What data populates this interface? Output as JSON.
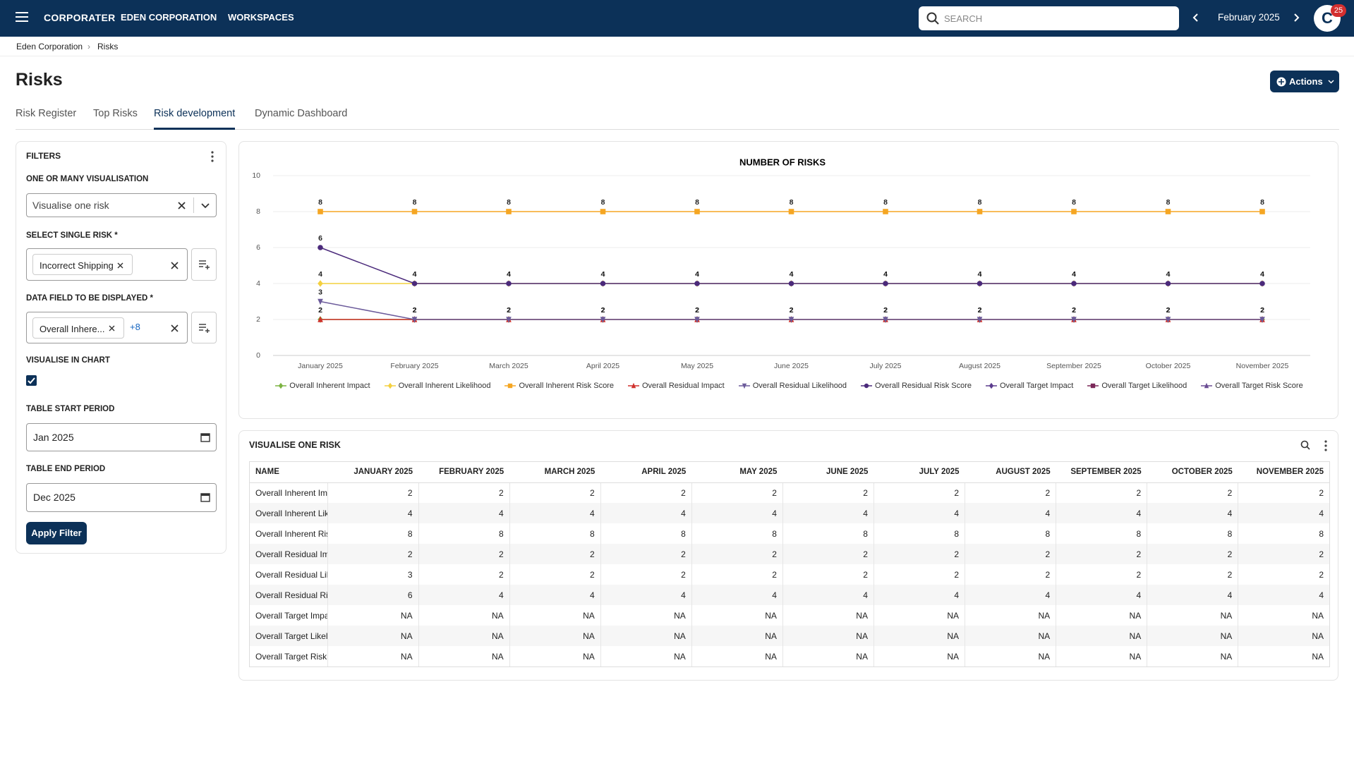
{
  "nav": {
    "brand": "CORPORATER",
    "items": [
      "EDEN CORPORATION",
      "WORKSPACES"
    ],
    "search": "SEARCH",
    "period": "February 2025",
    "avatar": "C",
    "badge": "25"
  },
  "breadcrumb": [
    "Eden Corporation",
    "Risks"
  ],
  "page": {
    "title": "Risks",
    "actions": "Actions"
  },
  "tabs": [
    "Risk Register",
    "Top Risks",
    "Risk development",
    "Dynamic Dashboard"
  ],
  "filters": {
    "title": "FILTERS",
    "visualisation_label": "ONE OR MANY VISUALISATION",
    "visualisation_value": "Visualise one risk",
    "risk_label": "SELECT SINGLE RISK *",
    "risk_chip": "Incorrect Shipping",
    "field_label": "DATA FIELD TO BE DISPLAYED *",
    "field_chip": "Overall Inhere...",
    "field_more": "+8",
    "chart_label": "VISUALISE IN CHART",
    "start_label": "TABLE START PERIOD",
    "start_value": "Jan 2025",
    "end_label": "TABLE END PERIOD",
    "end_value": "Dec 2025",
    "apply": "Apply Filter"
  },
  "chart_data": {
    "type": "line",
    "title": "NUMBER OF RISKS",
    "categories": [
      "January 2025",
      "February 2025",
      "March 2025",
      "April 2025",
      "May 2025",
      "June 2025",
      "July 2025",
      "August 2025",
      "September 2025",
      "October 2025",
      "November 2025"
    ],
    "ylim": [
      0,
      10
    ],
    "yticks": [
      0,
      2,
      4,
      6,
      8,
      10
    ],
    "grid": true,
    "series": [
      {
        "name": "Overall Inherent Impact",
        "color": "#7cb342",
        "marker": "diamond",
        "values": [
          2,
          2,
          2,
          2,
          2,
          2,
          2,
          2,
          2,
          2,
          2
        ]
      },
      {
        "name": "Overall Inherent Likelihood",
        "color": "#f4d03f",
        "marker": "diamond",
        "values": [
          4,
          4,
          4,
          4,
          4,
          4,
          4,
          4,
          4,
          4,
          4
        ]
      },
      {
        "name": "Overall Inherent Risk Score",
        "color": "#f5a623",
        "marker": "square",
        "values": [
          8,
          8,
          8,
          8,
          8,
          8,
          8,
          8,
          8,
          8,
          8
        ]
      },
      {
        "name": "Overall Residual Impact",
        "color": "#d0312d",
        "marker": "triangle",
        "values": [
          2,
          2,
          2,
          2,
          2,
          2,
          2,
          2,
          2,
          2,
          2
        ]
      },
      {
        "name": "Overall Residual Likelihood",
        "color": "#6c5b9b",
        "marker": "triangle-down",
        "values": [
          3,
          2,
          2,
          2,
          2,
          2,
          2,
          2,
          2,
          2,
          2
        ]
      },
      {
        "name": "Overall Residual Risk Score",
        "color": "#4b2a7b",
        "marker": "circle",
        "values": [
          6,
          4,
          4,
          4,
          4,
          4,
          4,
          4,
          4,
          4,
          4
        ]
      },
      {
        "name": "Overall Target Impact",
        "color": "#5c3c8e",
        "marker": "diamond",
        "values": [
          null,
          null,
          null,
          null,
          null,
          null,
          null,
          null,
          null,
          null,
          null
        ]
      },
      {
        "name": "Overall Target Likelihood",
        "color": "#7b2859",
        "marker": "square",
        "values": [
          null,
          null,
          null,
          null,
          null,
          null,
          null,
          null,
          null,
          null,
          null
        ]
      },
      {
        "name": "Overall Target Risk Score",
        "color": "#6a4c93",
        "marker": "triangle",
        "values": [
          null,
          null,
          null,
          null,
          null,
          null,
          null,
          null,
          null,
          null,
          null
        ]
      }
    ]
  },
  "table": {
    "title": "VISUALISE ONE RISK",
    "columns": [
      "NAME",
      "JANUARY 2025",
      "FEBRUARY 2025",
      "MARCH 2025",
      "APRIL 2025",
      "MAY 2025",
      "JUNE 2025",
      "JULY 2025",
      "AUGUST 2025",
      "SEPTEMBER 2025",
      "OCTOBER 2025",
      "NOVEMBER 2025"
    ],
    "rows": [
      [
        "Overall Inherent Impact",
        2,
        2,
        2,
        2,
        2,
        2,
        2,
        2,
        2,
        2,
        2
      ],
      [
        "Overall Inherent Likelihood",
        4,
        4,
        4,
        4,
        4,
        4,
        4,
        4,
        4,
        4,
        4
      ],
      [
        "Overall Inherent Risk Score",
        8,
        8,
        8,
        8,
        8,
        8,
        8,
        8,
        8,
        8,
        8
      ],
      [
        "Overall Residual Impact",
        2,
        2,
        2,
        2,
        2,
        2,
        2,
        2,
        2,
        2,
        2
      ],
      [
        "Overall Residual Likelihood",
        3,
        2,
        2,
        2,
        2,
        2,
        2,
        2,
        2,
        2,
        2
      ],
      [
        "Overall Residual Risk Score",
        6,
        4,
        4,
        4,
        4,
        4,
        4,
        4,
        4,
        4,
        4
      ],
      [
        "Overall Target Impact",
        "NA",
        "NA",
        "NA",
        "NA",
        "NA",
        "NA",
        "NA",
        "NA",
        "NA",
        "NA",
        "NA"
      ],
      [
        "Overall Target Likelihood",
        "NA",
        "NA",
        "NA",
        "NA",
        "NA",
        "NA",
        "NA",
        "NA",
        "NA",
        "NA",
        "NA"
      ],
      [
        "Overall Target Risk Score",
        "NA",
        "NA",
        "NA",
        "NA",
        "NA",
        "NA",
        "NA",
        "NA",
        "NA",
        "NA",
        "NA"
      ]
    ]
  }
}
